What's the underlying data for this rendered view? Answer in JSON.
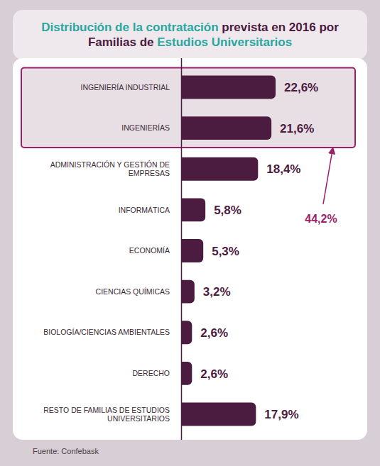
{
  "chart_data": {
    "type": "bar",
    "orientation": "horizontal",
    "title": "Distribución de la contratación prevista en 2016 por Familias de Estudios Universitarios",
    "categories": [
      "INGENIERÍA INDUSTRIAL",
      "INGENIERÍAS",
      "ADMINISTRACIÓN Y GESTIÓN DE EMPRESAS",
      "INFORMÁTICA",
      "ECONOMÍA",
      "CIENCIAS QUÍMICAS",
      "BIOLOGÍA/CIENCIAS AMBIENTALES",
      "DERECHO",
      "RESTO DE FAMILIAS DE ESTUDIOS UNIVERSITARIOS"
    ],
    "values": [
      22.6,
      21.6,
      18.4,
      5.8,
      5.3,
      3.2,
      2.6,
      2.6,
      17.9
    ],
    "value_labels": [
      "22,6%",
      "21,6%",
      "18,4%",
      "5,8%",
      "5,3%",
      "3,2%",
      "2,6%",
      "2,6%",
      "17,9%"
    ],
    "data_labels": true,
    "tick_labels": "y",
    "color": "#4b1c3f",
    "annotations": [
      "44,2%"
    ],
    "source": "Fuente: Confebask"
  }
}
